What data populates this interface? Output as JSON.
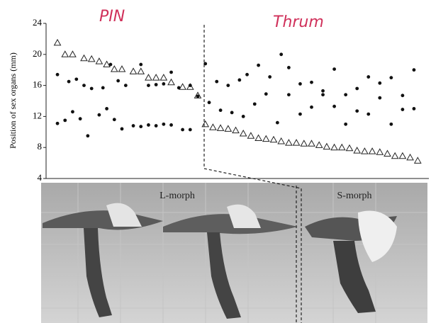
{
  "chart_data": {
    "type": "scatter",
    "y_label": "Position of sex organs (mm)",
    "annotations": [
      "PIN",
      "Thrum",
      "L-morph",
      "S-morph"
    ],
    "xlim": [
      0,
      100
    ],
    "ylim": [
      4,
      24
    ],
    "yticks": [
      4,
      8,
      12,
      16,
      20,
      24
    ],
    "series": [
      {
        "marker": "triangle",
        "color": "#222222",
        "x": [
          3,
          5,
          7,
          10,
          12,
          14,
          16,
          18,
          20,
          23,
          25,
          27,
          29,
          31,
          33,
          36,
          38,
          40
        ],
        "values": [
          21.5,
          20,
          20,
          19.5,
          19.4,
          19.1,
          18.7,
          18.1,
          18.1,
          17.8,
          17.8,
          17,
          17,
          17,
          16.4,
          15.8,
          15.8,
          14.7
        ]
      },
      {
        "marker": "dot",
        "color": "#111111",
        "x": [
          3,
          6,
          8,
          10,
          12,
          15,
          17,
          19,
          21,
          25,
          27,
          29,
          31,
          33,
          35,
          38,
          40
        ],
        "values": [
          17.4,
          16.5,
          16.8,
          16,
          15.6,
          15.7,
          18.7,
          16.6,
          16,
          18.7,
          16,
          16.1,
          16.2,
          17.7,
          15.7,
          16,
          14.6
        ]
      },
      {
        "marker": "dot",
        "color": "#111111",
        "x": [
          3,
          5,
          7,
          9,
          11,
          14,
          16,
          18,
          20,
          23,
          25,
          27,
          29,
          31,
          33,
          36,
          38
        ],
        "values": [
          11.1,
          11.5,
          12.6,
          11.7,
          9.5,
          12.2,
          13,
          11.6,
          10.4,
          10.8,
          10.7,
          10.9,
          10.8,
          11,
          10.9,
          10.3,
          10.3
        ]
      },
      {
        "marker": "triangle",
        "color": "#222222",
        "x": [
          42,
          44,
          46,
          48,
          50,
          52,
          54,
          56,
          58,
          60,
          62,
          64,
          66,
          68,
          70,
          72,
          74,
          76,
          78,
          80,
          82,
          84,
          86,
          88,
          90,
          92,
          94,
          96,
          98
        ],
        "values": [
          11,
          10.6,
          10.5,
          10.4,
          10.2,
          9.8,
          9.5,
          9.2,
          9.1,
          9.0,
          8.8,
          8.6,
          8.6,
          8.5,
          8.5,
          8.3,
          8.1,
          8.0,
          8.0,
          7.9,
          7.6,
          7.5,
          7.5,
          7.4,
          7.2,
          6.9,
          6.9,
          6.7,
          6.3
        ]
      },
      {
        "marker": "dot",
        "color": "#111111",
        "x": [
          42,
          45,
          48,
          51,
          53,
          56,
          59,
          62,
          64,
          67,
          70,
          73,
          76,
          79,
          82,
          85,
          88,
          91,
          94,
          97
        ],
        "values": [
          18.8,
          16.5,
          16,
          16.7,
          17.4,
          18.6,
          17.1,
          20,
          18.3,
          16.2,
          16.4,
          15.3,
          18.1,
          14.8,
          15.6,
          17.1,
          16.3,
          17,
          14.7,
          18
        ]
      },
      {
        "marker": "dot",
        "color": "#111111",
        "x": [
          43,
          46,
          49,
          52,
          55,
          58,
          61,
          64,
          67,
          70,
          73,
          76,
          79,
          82,
          85,
          88,
          91,
          94,
          97
        ],
        "values": [
          13.8,
          12.8,
          12.5,
          12.0,
          13.6,
          14.9,
          11.2,
          14.8,
          12.3,
          13.2,
          14.8,
          13.3,
          11.0,
          12.7,
          12.3,
          14.4,
          11.0,
          12.9,
          13.0
        ]
      }
    ]
  }
}
